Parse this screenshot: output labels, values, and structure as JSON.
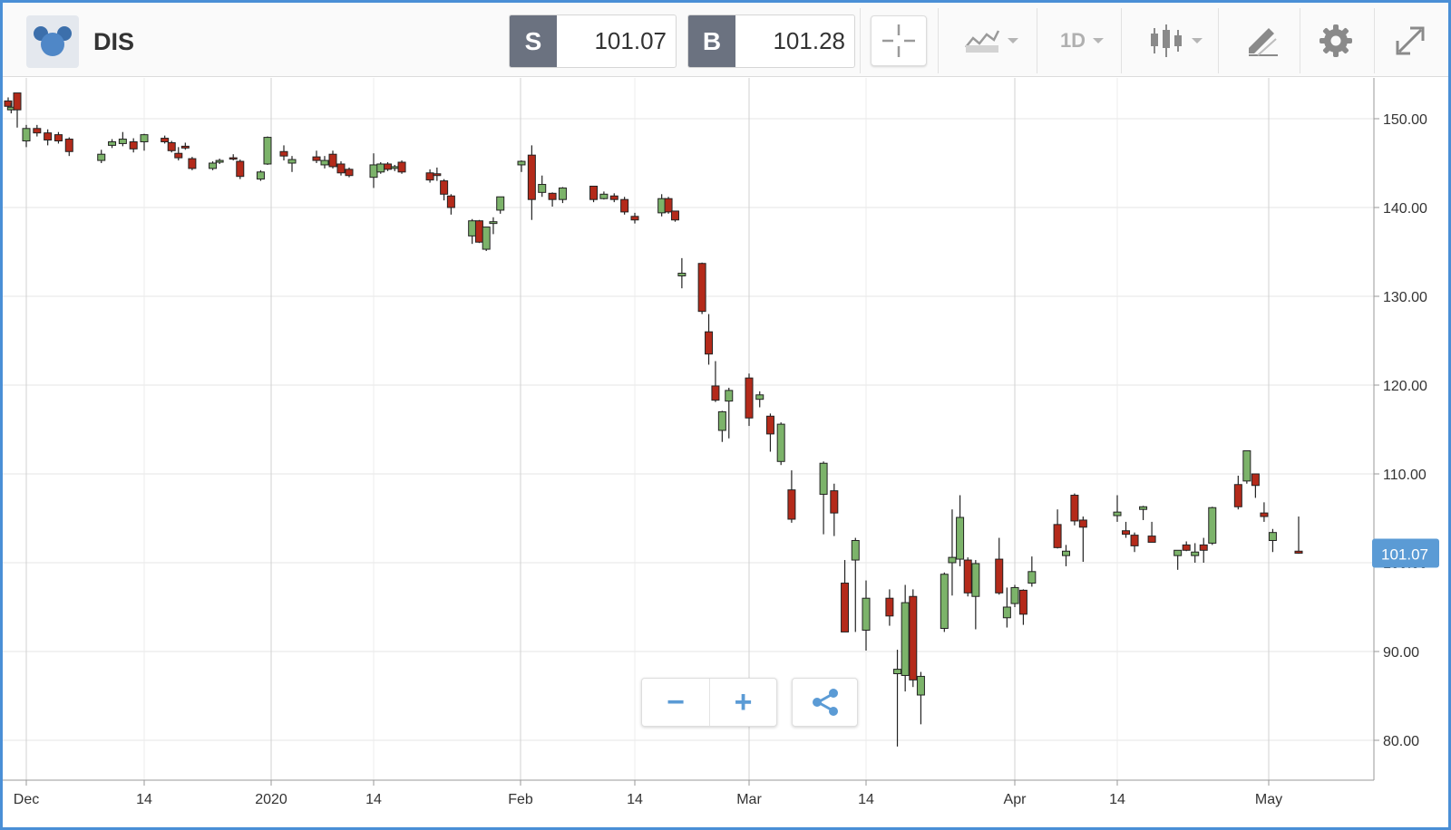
{
  "app": {
    "symbol": "DIS",
    "logo_icon": "mickey-ears-icon"
  },
  "quotes": {
    "sell_label": "S",
    "sell_price": "101.07",
    "buy_label": "B",
    "buy_price": "101.28"
  },
  "toolbar": {
    "crosshair_icon": "crosshair-icon",
    "compare_icon": "compare-chart-icon",
    "interval": "1D",
    "chart_type_icon": "candlestick-icon",
    "draw_icon": "drawing-tools-icon",
    "settings_icon": "gear-icon",
    "fullscreen_icon": "expand-icon"
  },
  "controls": {
    "zoom_out_label": "−",
    "zoom_in_label": "+",
    "share_icon": "share-icon"
  },
  "colors": {
    "up": "#7cb36a",
    "down": "#b42a1a",
    "accent": "#5b9bd5",
    "frame": "#4a8fd6"
  },
  "chart_data": {
    "type": "candlestick",
    "ylim": [
      78,
      153
    ],
    "y_ticks": [
      "150.00",
      "140.00",
      "130.00",
      "120.00",
      "110.00",
      "100.00",
      "90.00",
      "80.00"
    ],
    "x_ticks": [
      "Dec",
      "14",
      "2020",
      "14",
      "Feb",
      "14",
      "Mar",
      "14",
      "Apr",
      "14",
      "May"
    ],
    "last_price_label": "101.07",
    "last_price": 101.07,
    "candles": [
      {
        "date": "Nov 26",
        "o": 152.0,
        "h": 152.4,
        "l": 151.0,
        "c": 151.4
      },
      {
        "date": "Nov 27",
        "o": 151.0,
        "h": 151.8,
        "l": 150.6,
        "c": 151.3
      },
      {
        "date": "Nov 29",
        "o": 152.9,
        "h": 152.9,
        "l": 149.0,
        "c": 151.0
      },
      {
        "date": "Dec 2",
        "o": 147.5,
        "h": 149.3,
        "l": 146.8,
        "c": 148.9
      },
      {
        "date": "Dec 3",
        "o": 148.9,
        "h": 149.3,
        "l": 148.0,
        "c": 148.4
      },
      {
        "date": "Dec 4",
        "o": 148.4,
        "h": 148.8,
        "l": 147.0,
        "c": 147.6
      },
      {
        "date": "Dec 5",
        "o": 148.2,
        "h": 148.5,
        "l": 147.2,
        "c": 147.5
      },
      {
        "date": "Dec 6",
        "o": 147.7,
        "h": 147.9,
        "l": 145.8,
        "c": 146.3
      },
      {
        "date": "Dec 9",
        "o": 145.3,
        "h": 146.5,
        "l": 145.0,
        "c": 146.0
      },
      {
        "date": "Dec 10",
        "o": 147.0,
        "h": 147.7,
        "l": 146.7,
        "c": 147.4
      },
      {
        "date": "Dec 11",
        "o": 147.2,
        "h": 148.5,
        "l": 146.9,
        "c": 147.7
      },
      {
        "date": "Dec 12",
        "o": 147.4,
        "h": 147.8,
        "l": 146.2,
        "c": 146.6
      },
      {
        "date": "Dec 13",
        "o": 147.4,
        "h": 148.3,
        "l": 146.4,
        "c": 148.2
      },
      {
        "date": "Dec 16",
        "o": 147.8,
        "h": 148.1,
        "l": 147.2,
        "c": 147.4
      },
      {
        "date": "Dec 17",
        "o": 147.3,
        "h": 147.5,
        "l": 146.2,
        "c": 146.4
      },
      {
        "date": "Dec 18",
        "o": 146.1,
        "h": 146.8,
        "l": 145.3,
        "c": 145.6
      },
      {
        "date": "Dec 19",
        "o": 146.9,
        "h": 147.3,
        "l": 146.5,
        "c": 146.7
      },
      {
        "date": "Dec 20",
        "o": 145.5,
        "h": 145.7,
        "l": 144.2,
        "c": 144.4
      },
      {
        "date": "Dec 23",
        "o": 144.4,
        "h": 145.2,
        "l": 144.2,
        "c": 145.0
      },
      {
        "date": "Dec 24",
        "o": 145.1,
        "h": 145.5,
        "l": 144.9,
        "c": 145.3
      },
      {
        "date": "Dec 26",
        "o": 145.6,
        "h": 146.0,
        "l": 145.3,
        "c": 145.5
      },
      {
        "date": "Dec 27",
        "o": 145.2,
        "h": 145.4,
        "l": 143.2,
        "c": 143.5
      },
      {
        "date": "Dec 30",
        "o": 143.2,
        "h": 144.2,
        "l": 143.0,
        "c": 144.0
      },
      {
        "date": "Dec 31",
        "o": 144.9,
        "h": 148.0,
        "l": 144.8,
        "c": 147.9
      },
      {
        "date": "Jan 2",
        "o": 146.3,
        "h": 147.0,
        "l": 145.3,
        "c": 145.8
      },
      {
        "date": "Jan 3",
        "o": 145.0,
        "h": 145.8,
        "l": 144.0,
        "c": 145.4
      },
      {
        "date": "Jan 6",
        "o": 145.7,
        "h": 146.4,
        "l": 145.0,
        "c": 145.3
      },
      {
        "date": "Jan 7",
        "o": 144.8,
        "h": 145.8,
        "l": 144.4,
        "c": 145.3
      },
      {
        "date": "Jan 8",
        "o": 146.0,
        "h": 146.4,
        "l": 144.4,
        "c": 144.6
      },
      {
        "date": "Jan 9",
        "o": 144.9,
        "h": 145.2,
        "l": 143.6,
        "c": 143.9
      },
      {
        "date": "Jan 10",
        "o": 144.3,
        "h": 144.5,
        "l": 143.4,
        "c": 143.6
      },
      {
        "date": "Jan 13",
        "o": 143.4,
        "h": 146.1,
        "l": 142.2,
        "c": 144.8
      },
      {
        "date": "Jan 14",
        "o": 144.0,
        "h": 145.1,
        "l": 143.8,
        "c": 144.9
      },
      {
        "date": "Jan 15",
        "o": 144.9,
        "h": 145.1,
        "l": 144.1,
        "c": 144.3
      },
      {
        "date": "Jan 16",
        "o": 144.4,
        "h": 144.8,
        "l": 144.1,
        "c": 144.6
      },
      {
        "date": "Jan 17",
        "o": 145.1,
        "h": 145.3,
        "l": 143.8,
        "c": 144.0
      },
      {
        "date": "Jan 21",
        "o": 143.9,
        "h": 144.3,
        "l": 142.8,
        "c": 143.1
      },
      {
        "date": "Jan 22",
        "o": 143.8,
        "h": 144.5,
        "l": 143.0,
        "c": 143.6
      },
      {
        "date": "Jan 23",
        "o": 143.0,
        "h": 143.2,
        "l": 140.8,
        "c": 141.5
      },
      {
        "date": "Jan 24",
        "o": 141.3,
        "h": 141.5,
        "l": 139.2,
        "c": 140.0
      },
      {
        "date": "Jan 27",
        "o": 136.8,
        "h": 138.7,
        "l": 135.9,
        "c": 138.5
      },
      {
        "date": "Jan 28",
        "o": 138.5,
        "h": 138.6,
        "l": 136.0,
        "c": 136.1
      },
      {
        "date": "Jan 29",
        "o": 135.3,
        "h": 137.8,
        "l": 135.1,
        "c": 137.8
      },
      {
        "date": "Jan 30",
        "o": 138.2,
        "h": 138.9,
        "l": 137.0,
        "c": 138.4
      },
      {
        "date": "Jan 31",
        "o": 139.7,
        "h": 141.0,
        "l": 139.3,
        "c": 141.2
      },
      {
        "date": "Feb 3",
        "o": 144.8,
        "h": 145.3,
        "l": 144.0,
        "c": 145.2
      },
      {
        "date": "Feb 4",
        "o": 145.9,
        "h": 147.0,
        "l": 138.6,
        "c": 140.9
      },
      {
        "date": "Feb 5",
        "o": 141.7,
        "h": 143.6,
        "l": 141.2,
        "c": 142.6
      },
      {
        "date": "Feb 6",
        "o": 141.6,
        "h": 141.7,
        "l": 140.1,
        "c": 140.9
      },
      {
        "date": "Feb 7",
        "o": 140.9,
        "h": 142.3,
        "l": 140.5,
        "c": 142.2
      },
      {
        "date": "Feb 10",
        "o": 142.4,
        "h": 142.4,
        "l": 140.6,
        "c": 140.9
      },
      {
        "date": "Feb 11",
        "o": 141.0,
        "h": 141.8,
        "l": 140.9,
        "c": 141.5
      },
      {
        "date": "Feb 12",
        "o": 141.3,
        "h": 141.6,
        "l": 140.6,
        "c": 140.9
      },
      {
        "date": "Feb 13",
        "o": 140.9,
        "h": 141.2,
        "l": 139.2,
        "c": 139.5
      },
      {
        "date": "Feb 14",
        "o": 139.0,
        "h": 139.4,
        "l": 138.2,
        "c": 138.6
      },
      {
        "date": "Feb 18",
        "o": 139.4,
        "h": 141.5,
        "l": 139.0,
        "c": 141.0
      },
      {
        "date": "Feb 19",
        "o": 141.0,
        "h": 141.2,
        "l": 139.3,
        "c": 139.5
      },
      {
        "date": "Feb 20",
        "o": 139.6,
        "h": 139.6,
        "l": 138.4,
        "c": 138.6
      },
      {
        "date": "Feb 21",
        "o": 132.3,
        "h": 134.3,
        "l": 130.9,
        "c": 132.6
      },
      {
        "date": "Feb 24",
        "o": 133.7,
        "h": 133.8,
        "l": 128.0,
        "c": 128.3
      },
      {
        "date": "Feb 25",
        "o": 126.0,
        "h": 128.0,
        "l": 122.3,
        "c": 123.5
      },
      {
        "date": "Feb 26",
        "o": 119.9,
        "h": 122.7,
        "l": 118.1,
        "c": 118.3
      },
      {
        "date": "Feb 27",
        "o": 114.9,
        "h": 117.1,
        "l": 113.6,
        "c": 117.0
      },
      {
        "date": "Feb 28",
        "o": 118.2,
        "h": 119.7,
        "l": 114.0,
        "c": 119.4
      },
      {
        "date": "Mar 2",
        "o": 120.8,
        "h": 121.3,
        "l": 115.4,
        "c": 116.3
      },
      {
        "date": "Mar 3",
        "o": 118.4,
        "h": 119.3,
        "l": 117.5,
        "c": 118.9
      },
      {
        "date": "Mar 4",
        "o": 116.5,
        "h": 116.8,
        "l": 112.5,
        "c": 114.5
      },
      {
        "date": "Mar 5",
        "o": 111.4,
        "h": 115.8,
        "l": 111.0,
        "c": 115.6
      },
      {
        "date": "Mar 6",
        "o": 108.2,
        "h": 110.4,
        "l": 104.5,
        "c": 104.9
      },
      {
        "date": "Mar 9",
        "o": 107.7,
        "h": 111.4,
        "l": 103.2,
        "c": 111.2
      },
      {
        "date": "Mar 10",
        "o": 108.1,
        "h": 108.9,
        "l": 103.0,
        "c": 105.6
      },
      {
        "date": "Mar 11",
        "o": 97.7,
        "h": 100.3,
        "l": 92.2,
        "c": 92.2
      },
      {
        "date": "Mar 12",
        "o": 100.3,
        "h": 102.8,
        "l": 92.2,
        "c": 102.5
      },
      {
        "date": "Mar 13",
        "o": 92.4,
        "h": 98.0,
        "l": 90.1,
        "c": 96.0
      },
      {
        "date": "Mar 16",
        "o": 96.0,
        "h": 97.0,
        "l": 92.9,
        "c": 94.0
      },
      {
        "date": "Mar 17",
        "o": 87.5,
        "h": 90.2,
        "l": 79.3,
        "c": 88.0
      },
      {
        "date": "Mar 18",
        "o": 87.3,
        "h": 97.5,
        "l": 85.5,
        "c": 95.5
      },
      {
        "date": "Mar 19",
        "o": 96.2,
        "h": 97.0,
        "l": 86.0,
        "c": 86.8
      },
      {
        "date": "Mar 20",
        "o": 85.1,
        "h": 87.7,
        "l": 81.8,
        "c": 87.2
      },
      {
        "date": "Mar 23",
        "o": 92.6,
        "h": 98.9,
        "l": 92.2,
        "c": 98.7
      },
      {
        "date": "Mar 24",
        "o": 100.0,
        "h": 106.0,
        "l": 96.3,
        "c": 100.6
      },
      {
        "date": "Mar 25",
        "o": 100.4,
        "h": 107.6,
        "l": 99.6,
        "c": 105.1
      },
      {
        "date": "Mar 26",
        "o": 100.3,
        "h": 100.6,
        "l": 96.2,
        "c": 96.6
      },
      {
        "date": "Mar 27",
        "o": 96.2,
        "h": 100.3,
        "l": 92.5,
        "c": 99.9
      },
      {
        "date": "Mar 30",
        "o": 100.4,
        "h": 102.8,
        "l": 96.4,
        "c": 96.6
      },
      {
        "date": "Mar 31",
        "o": 93.8,
        "h": 97.2,
        "l": 92.7,
        "c": 95.0
      },
      {
        "date": "Apr 1",
        "o": 95.4,
        "h": 97.5,
        "l": 95.0,
        "c": 97.2
      },
      {
        "date": "Apr 2",
        "o": 96.9,
        "h": 97.0,
        "l": 93.0,
        "c": 94.2
      },
      {
        "date": "Apr 3",
        "o": 97.7,
        "h": 100.7,
        "l": 97.3,
        "c": 99.0
      },
      {
        "date": "Apr 6",
        "o": 104.3,
        "h": 106.0,
        "l": 101.6,
        "c": 101.7
      },
      {
        "date": "Apr 7",
        "o": 100.8,
        "h": 102.0,
        "l": 99.6,
        "c": 101.3
      },
      {
        "date": "Apr 8",
        "o": 107.6,
        "h": 107.8,
        "l": 104.2,
        "c": 104.7
      },
      {
        "date": "Apr 9",
        "o": 104.8,
        "h": 105.2,
        "l": 100.1,
        "c": 104.0
      },
      {
        "date": "Apr 13",
        "o": 105.3,
        "h": 107.6,
        "l": 104.6,
        "c": 105.7
      },
      {
        "date": "Apr 14",
        "o": 103.6,
        "h": 104.6,
        "l": 102.8,
        "c": 103.2
      },
      {
        "date": "Apr 15",
        "o": 103.1,
        "h": 103.4,
        "l": 101.2,
        "c": 101.9
      },
      {
        "date": "Apr 16",
        "o": 106.0,
        "h": 106.4,
        "l": 104.8,
        "c": 106.3
      },
      {
        "date": "Apr 17",
        "o": 103.0,
        "h": 104.6,
        "l": 102.4,
        "c": 102.3
      },
      {
        "date": "Apr 20",
        "o": 100.8,
        "h": 101.3,
        "l": 99.2,
        "c": 101.4
      },
      {
        "date": "Apr 21",
        "o": 102.0,
        "h": 102.4,
        "l": 101.3,
        "c": 101.4
      },
      {
        "date": "Apr 22",
        "o": 100.8,
        "h": 102.2,
        "l": 100.0,
        "c": 101.2
      },
      {
        "date": "Apr 23",
        "o": 102.0,
        "h": 102.8,
        "l": 100.0,
        "c": 101.4
      },
      {
        "date": "Apr 24",
        "o": 102.2,
        "h": 106.3,
        "l": 102.0,
        "c": 106.2
      },
      {
        "date": "Apr 27",
        "o": 108.8,
        "h": 109.8,
        "l": 106.0,
        "c": 106.3
      },
      {
        "date": "Apr 28",
        "o": 109.2,
        "h": 112.5,
        "l": 108.9,
        "c": 112.6
      },
      {
        "date": "Apr 29",
        "o": 110.0,
        "h": 110.0,
        "l": 107.3,
        "c": 108.7
      },
      {
        "date": "Apr 30",
        "o": 105.6,
        "h": 106.8,
        "l": 104.6,
        "c": 105.2
      },
      {
        "date": "May 1",
        "o": 102.5,
        "h": 103.8,
        "l": 101.2,
        "c": 103.4
      },
      {
        "date": "May 4",
        "o": 101.3,
        "h": 105.2,
        "l": 101.0,
        "c": 101.07
      }
    ]
  }
}
